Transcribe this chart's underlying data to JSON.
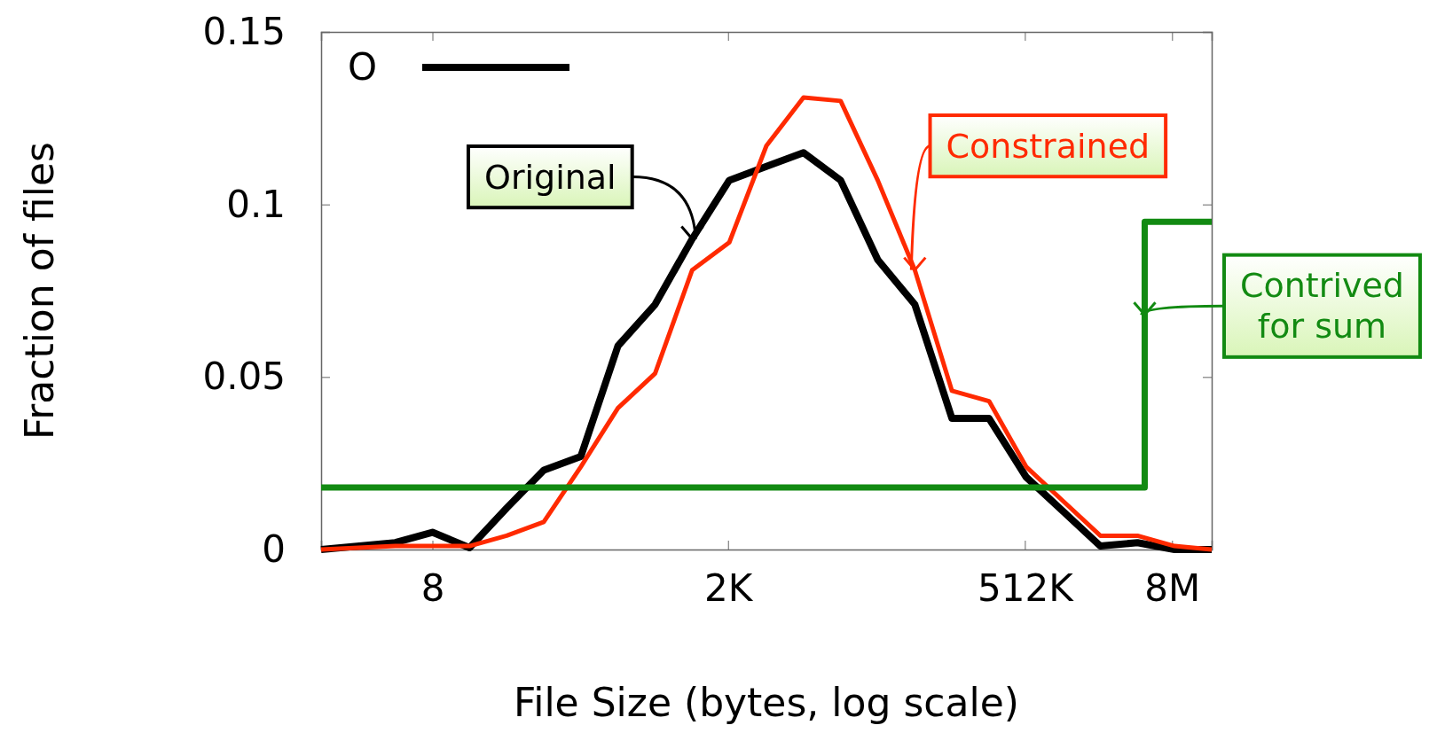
{
  "chart_data": {
    "type": "line",
    "xlabel": "File Size (bytes, log scale)",
    "ylabel": "Fraction of files",
    "log": "x",
    "xlim": [
      1,
      16777216
    ],
    "ylim": [
      0,
      0.15
    ],
    "xticks": [
      {
        "value": 8,
        "label": "8"
      },
      {
        "value": 2000,
        "label": "2K"
      },
      {
        "value": 512000,
        "label": "512K"
      },
      {
        "value": 8000000,
        "label": "8M"
      }
    ],
    "yticks": [
      0,
      0.05,
      {
        "value": 0.1,
        "label": "0.1"
      },
      0.15
    ],
    "grid": false,
    "legend": "top left",
    "marker": "none",
    "line_style": "solid",
    "series": [
      {
        "name": "O",
        "color": "#000000",
        "x": [
          1,
          4,
          8,
          16,
          32,
          64,
          128,
          256,
          512,
          1024,
          2048,
          4096,
          8192,
          16384,
          32768,
          65536,
          131072,
          262144,
          524288,
          1048576,
          2097152,
          4194304,
          8388608,
          16777216
        ],
        "values": [
          0,
          0.002,
          0.005,
          0.0005,
          0.012,
          0.023,
          0.027,
          0.059,
          0.071,
          0.09,
          0.107,
          0.111,
          0.115,
          0.107,
          0.084,
          0.071,
          0.038,
          0.038,
          0.021,
          0.011,
          0.001,
          0.002,
          0,
          0
        ]
      },
      {
        "color": "#ff2a00",
        "x": [
          1,
          4,
          8,
          16,
          32,
          64,
          128,
          256,
          512,
          1024,
          2048,
          4096,
          8192,
          16384,
          32768,
          65536,
          131072,
          262144,
          524288,
          1048576,
          2097152,
          4194304,
          8388608,
          16777216
        ],
        "values": [
          0,
          0.001,
          0.001,
          0.001,
          0.004,
          0.008,
          0.024,
          0.041,
          0.051,
          0.081,
          0.089,
          0.117,
          0.131,
          0.13,
          0.107,
          0.081,
          0.046,
          0.043,
          0.024,
          0.014,
          0.004,
          0.004,
          0.001,
          0
        ]
      },
      {
        "type": "step",
        "color": "#128a12",
        "x": [
          1,
          4800000,
          16777216
        ],
        "values": [
          0.018,
          0.095,
          0.095
        ]
      }
    ],
    "annotations": [
      {
        "text": "Original",
        "x": 1024,
        "y": 0.09
      },
      {
        "text": "Constrained",
        "x": 65536,
        "y": 0.081
      },
      {
        "text": "Contrived for sum",
        "x": 4800000,
        "y": 0.068
      }
    ]
  }
}
